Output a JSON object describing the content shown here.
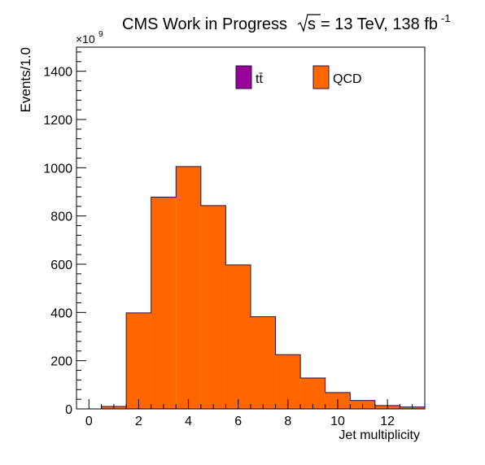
{
  "chart_data": {
    "type": "bar",
    "title_text": "CMS Work in Progress",
    "title_sqrt_s": "s",
    "title_energy": "= 13 TeV, 138 fb",
    "title_superscript": "-1",
    "xlabel": "Jet multiplicity",
    "ylabel": "Events/1.0",
    "y_multiplier_base": "×10",
    "y_multiplier_exp": "9",
    "xlim": [
      -0.5,
      13.5
    ],
    "ylim": [
      0,
      1500
    ],
    "x_ticks": [
      "0",
      "2",
      "4",
      "6",
      "8",
      "10",
      "12"
    ],
    "y_ticks": [
      "0",
      "200",
      "400",
      "600",
      "800",
      "1000",
      "1200",
      "1400"
    ],
    "bin_edges": [
      0.5,
      1.5,
      2.5,
      3.5,
      4.5,
      5.5,
      6.5,
      7.5,
      8.5,
      9.5,
      10.5,
      11.5,
      12.5,
      13.5
    ],
    "series": [
      {
        "name": "tt̄",
        "color": "#990099",
        "values": [
          0,
          0,
          0,
          0,
          0,
          0,
          0,
          0,
          0,
          0,
          0,
          0,
          0
        ]
      },
      {
        "name": "QCD",
        "color": "#ff6600",
        "values": [
          10,
          398,
          878,
          1005,
          843,
          597,
          382,
          225,
          128,
          68,
          35,
          14,
          8
        ]
      }
    ],
    "legend_placement": "top",
    "grid": false
  }
}
